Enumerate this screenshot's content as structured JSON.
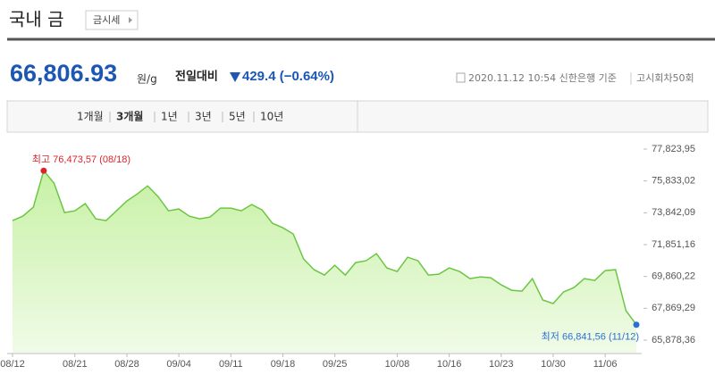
{
  "header": {
    "title": "국내 금",
    "button": "금시세"
  },
  "quote": {
    "price": "66,806.93",
    "unit": "원/g",
    "change_label": "전일대비",
    "change": "429.4 (−0.64%)",
    "source": "2020.11.12 10:54 신한은행 기준",
    "round": "고시회차50회"
  },
  "tabs": {
    "items": [
      "1개월",
      "3개월",
      "1년",
      "3년",
      "5년",
      "10년"
    ],
    "active": 1
  },
  "chart_data": {
    "type": "area",
    "color": "#6cc644",
    "fill": "#c4f0a0",
    "grid": false,
    "categories": [
      "08/12",
      null,
      null,
      null,
      null,
      null,
      "08/21",
      null,
      null,
      null,
      null,
      "08/28",
      null,
      null,
      null,
      null,
      "09/04",
      null,
      null,
      null,
      null,
      "09/11",
      null,
      null,
      null,
      null,
      "09/18",
      null,
      null,
      null,
      null,
      "09/25",
      null,
      null,
      null,
      null,
      null,
      "10/08",
      null,
      null,
      null,
      null,
      "10/16",
      null,
      null,
      null,
      null,
      "10/23",
      null,
      null,
      null,
      null,
      "10/30",
      null,
      null,
      null,
      null,
      "11/06",
      null,
      null,
      null
    ],
    "values": [
      73351,
      73630,
      74188,
      76473.57,
      75694,
      73853,
      73965,
      74411,
      73463,
      73351,
      73965,
      74578,
      75024,
      75526,
      74857,
      73965,
      74076,
      73630,
      73463,
      73574,
      74132,
      74132,
      73965,
      74355,
      74020,
      73184,
      72905,
      72515,
      70953,
      70284,
      69949,
      70563,
      69949,
      70730,
      70842,
      71288,
      70395,
      70172,
      71065,
      70842,
      69949,
      70005,
      70395,
      70172,
      69726,
      69838,
      69782,
      69336,
      69001,
      68945,
      69726,
      68388,
      68165,
      68890,
      69168,
      69726,
      69615,
      70228,
      70284,
      67718,
      66841.56
    ],
    "ylim": [
      65878.36,
      77823.95
    ],
    "yticks": [
      {
        "value": 77823.95,
        "label": "77,823,95"
      },
      {
        "value": 75833.02,
        "label": "75,833,02"
      },
      {
        "value": 73842.09,
        "label": "73,842,09"
      },
      {
        "value": 71851.16,
        "label": "71,851,16"
      },
      {
        "value": 69860.22,
        "label": "69,860,22"
      },
      {
        "value": 67869.29,
        "label": "67,869,29"
      },
      {
        "value": 65878.36,
        "label": "65,878,36"
      }
    ],
    "annotations": {
      "high": "최고 76,473,57 (08/18)",
      "low": "최저 66,841,56 (11/12)"
    },
    "high_color": "#d9262b",
    "low_color": "#2a6fd6"
  }
}
